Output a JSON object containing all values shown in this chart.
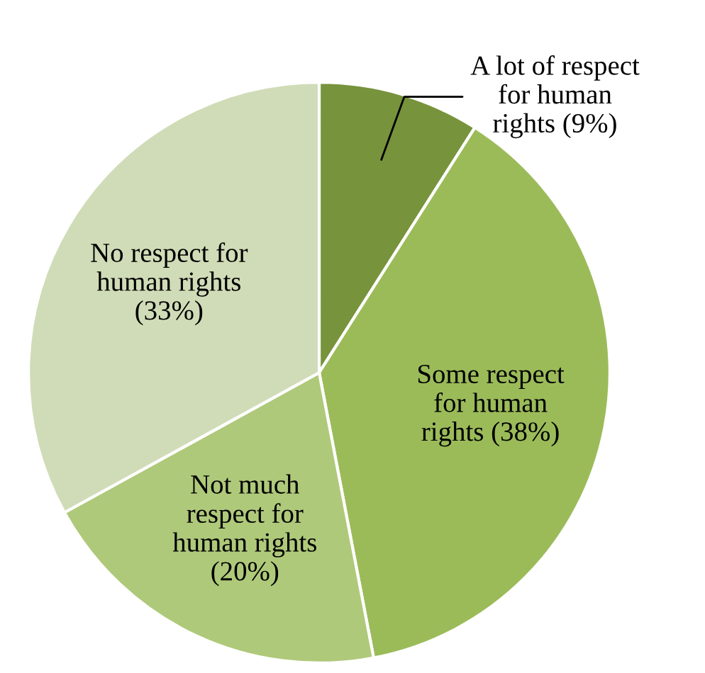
{
  "chart_data": {
    "type": "pie",
    "categories": [
      "A lot of respect\nfor human\nrights (9%)",
      "Some respect\nfor human\nrights (38%)",
      "Not much\nrespect for\nhuman rights\n(20%)",
      "No respect for\nhuman rights\n(33%)"
    ],
    "values": [
      9,
      38,
      20,
      33
    ],
    "colors": [
      "#77933c",
      "#9bbb59",
      "#afc97a",
      "#d0dcb7"
    ]
  }
}
